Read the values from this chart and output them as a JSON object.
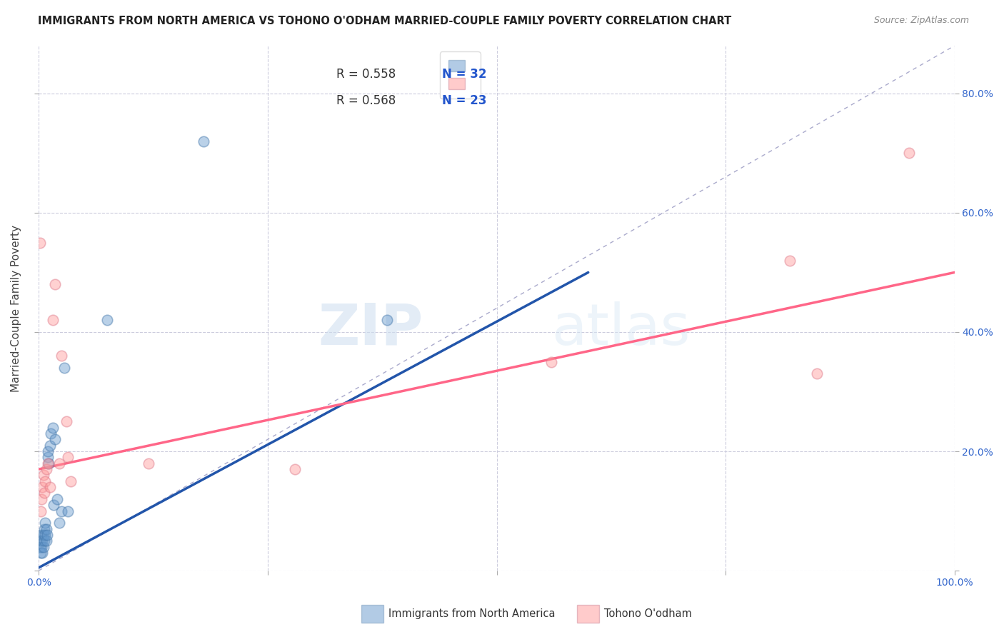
{
  "title": "IMMIGRANTS FROM NORTH AMERICA VS TOHONO O'ODHAM MARRIED-COUPLE FAMILY POVERTY CORRELATION CHART",
  "source": "Source: ZipAtlas.com",
  "ylabel": "Married-Couple Family Poverty",
  "xlim": [
    0.0,
    1.0
  ],
  "ylim": [
    0.0,
    0.88
  ],
  "xticks": [
    0.0,
    0.25,
    0.5,
    0.75,
    1.0
  ],
  "xticklabels": [
    "0.0%",
    "",
    "",
    "",
    "100.0%"
  ],
  "yticks": [
    0.0,
    0.2,
    0.4,
    0.6,
    0.8
  ],
  "yticklabels": [
    "",
    "20.0%",
    "40.0%",
    "60.0%",
    "80.0%"
  ],
  "blue_R": "R = 0.558",
  "blue_N": "N = 32",
  "pink_R": "R = 0.568",
  "pink_N": "N = 23",
  "blue_color": "#6699CC",
  "pink_color": "#FF9999",
  "blue_line_color": "#2255AA",
  "pink_line_color": "#FF6688",
  "diag_line_color": "#AAAACC",
  "watermark_zip": "ZIP",
  "watermark_atlas": "atlas",
  "legend_label_blue": "Immigrants from North America",
  "legend_label_pink": "Tohono O'odham",
  "blue_points_x": [
    0.001,
    0.002,
    0.002,
    0.003,
    0.003,
    0.004,
    0.004,
    0.005,
    0.005,
    0.006,
    0.006,
    0.007,
    0.007,
    0.008,
    0.008,
    0.009,
    0.01,
    0.01,
    0.011,
    0.012,
    0.013,
    0.015,
    0.016,
    0.018,
    0.02,
    0.022,
    0.025,
    0.028,
    0.032,
    0.075,
    0.18,
    0.38
  ],
  "blue_points_y": [
    0.04,
    0.03,
    0.05,
    0.04,
    0.06,
    0.03,
    0.05,
    0.04,
    0.06,
    0.05,
    0.07,
    0.06,
    0.08,
    0.05,
    0.07,
    0.06,
    0.19,
    0.2,
    0.18,
    0.21,
    0.23,
    0.24,
    0.11,
    0.22,
    0.12,
    0.08,
    0.1,
    0.34,
    0.1,
    0.42,
    0.72,
    0.42
  ],
  "pink_points_x": [
    0.001,
    0.002,
    0.003,
    0.004,
    0.005,
    0.006,
    0.007,
    0.008,
    0.01,
    0.012,
    0.015,
    0.018,
    0.022,
    0.025,
    0.03,
    0.032,
    0.035,
    0.12,
    0.28,
    0.56,
    0.82,
    0.85,
    0.95
  ],
  "pink_points_y": [
    0.55,
    0.1,
    0.12,
    0.14,
    0.16,
    0.13,
    0.15,
    0.17,
    0.18,
    0.14,
    0.42,
    0.48,
    0.18,
    0.36,
    0.25,
    0.19,
    0.15,
    0.18,
    0.17,
    0.35,
    0.52,
    0.33,
    0.7
  ],
  "blue_line_x": [
    0.0,
    0.6
  ],
  "blue_line_y": [
    0.005,
    0.5
  ],
  "pink_line_x": [
    0.0,
    1.0
  ],
  "pink_line_y": [
    0.17,
    0.5
  ]
}
